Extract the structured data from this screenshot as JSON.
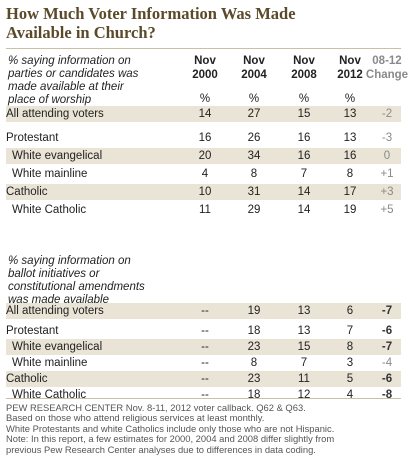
{
  "title_line1": "How Much Voter Information Was Made",
  "title_line2": "Available in Church?",
  "columns": [
    {
      "line1": "Nov",
      "line2": "2000"
    },
    {
      "line1": "Nov",
      "line2": "2004"
    },
    {
      "line1": "Nov",
      "line2": "2008"
    },
    {
      "line1": "Nov",
      "line2": "2012"
    },
    {
      "line1": "08-12",
      "line2": "Change"
    }
  ],
  "pct_symbol": "%",
  "section1_note": [
    "% saying information on",
    "parties or candidates was",
    "made available at their",
    "place of worship"
  ],
  "section2_note": [
    "% saying information on",
    "ballot initiatives or",
    "constitutional amendments",
    "was made available"
  ],
  "chart_data": {
    "type": "table",
    "columns": [
      "Nov 2000",
      "Nov 2004",
      "Nov 2008",
      "Nov 2012",
      "08-12 Change"
    ],
    "sections": [
      {
        "rows": [
          {
            "label": "All attending voters",
            "values": [
              "14",
              "27",
              "15",
              "13",
              "-2"
            ]
          },
          {
            "label": "Protestant",
            "values": [
              "16",
              "26",
              "16",
              "13",
              "-3"
            ]
          },
          {
            "label": "White evangelical",
            "values": [
              "20",
              "34",
              "16",
              "16",
              "0"
            ]
          },
          {
            "label": "White mainline",
            "values": [
              "4",
              "8",
              "7",
              "8",
              "+1"
            ]
          },
          {
            "label": "Catholic",
            "values": [
              "10",
              "31",
              "14",
              "17",
              "+3"
            ]
          },
          {
            "label": "White Catholic",
            "values": [
              "11",
              "29",
              "14",
              "19",
              "+5"
            ]
          }
        ]
      },
      {
        "rows": [
          {
            "label": "All attending voters",
            "values": [
              "--",
              "19",
              "13",
              "6",
              "-7"
            ]
          },
          {
            "label": "Protestant",
            "values": [
              "--",
              "18",
              "13",
              "7",
              "-6"
            ]
          },
          {
            "label": "White evangelical",
            "values": [
              "--",
              "23",
              "15",
              "8",
              "-7"
            ]
          },
          {
            "label": "White mainline",
            "values": [
              "--",
              "8",
              "7",
              "3",
              "-4"
            ]
          },
          {
            "label": "Catholic",
            "values": [
              "--",
              "23",
              "11",
              "5",
              "-6"
            ]
          },
          {
            "label": "White Catholic",
            "values": [
              "--",
              "18",
              "12",
              "4",
              "-8"
            ]
          }
        ]
      }
    ]
  },
  "footnotes": [
    "PEW RESEARCH CENTER Nov. 8-11, 2012 voter callback. Q62 & Q63.",
    "Based on those who attend religious services at least monthly.",
    "White Protestants and white Catholics include only those who are not Hispanic.",
    "Note: In this report, a few estimates for 2000, 2004 and 2008 differ slightly from",
    "previous Pew Research Center analyses due to differences in data coding."
  ]
}
